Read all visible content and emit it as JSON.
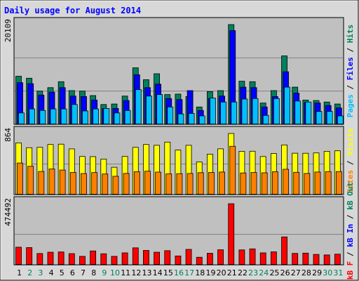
{
  "title": "Daily usage for August 2014",
  "colors": {
    "frame": "#d8d8d8",
    "panel": "#c0c0c0",
    "grid": "#808080",
    "hits": "#00805c",
    "files": "#0000ff",
    "pages": "#00c0ff",
    "visits": "#ffff00",
    "sites": "#ff8000",
    "kbin": "#0000ff",
    "kbout": "#00805c",
    "kbf": "#ff0000",
    "title": "#0000ff",
    "weekday": "#000000",
    "weekend": "#00805c"
  },
  "right_labels": {
    "top": [
      "Pages",
      " / ",
      "Files",
      " / ",
      "Hits"
    ],
    "middle": [
      "Sites",
      " / ",
      "Visits"
    ],
    "bottom": [
      "kB F",
      " / ",
      "kB In",
      " / ",
      "kB Out"
    ]
  },
  "chart_data": [
    {
      "type": "bar",
      "name": "hits-files-pages",
      "ymax_label": "20109",
      "ylim": [
        0,
        20109
      ],
      "x": [
        1,
        2,
        3,
        4,
        5,
        6,
        7,
        8,
        9,
        10,
        11,
        12,
        13,
        14,
        15,
        16,
        17,
        18,
        19,
        20,
        21,
        22,
        23,
        24,
        25,
        26,
        27,
        28,
        29,
        30,
        31
      ],
      "series": [
        {
          "name": "Hits",
          "values": [
            9700,
            9300,
            6700,
            7400,
            8600,
            6800,
            6700,
            5800,
            4000,
            4100,
            5700,
            11400,
            9000,
            10200,
            6000,
            6100,
            5600,
            3500,
            6600,
            6800,
            20109,
            8700,
            8600,
            4300,
            6800,
            13800,
            7500,
            4900,
            4800,
            4500,
            4100
          ]
        },
        {
          "name": "Files",
          "values": [
            8400,
            8200,
            5900,
            6500,
            7400,
            5700,
            5600,
            4900,
            3200,
            3200,
            4800,
            10000,
            7400,
            8100,
            5200,
            5000,
            6800,
            2800,
            5200,
            5700,
            18900,
            7500,
            7400,
            3500,
            5600,
            10600,
            6300,
            4400,
            4300,
            3800,
            3300
          ]
        },
        {
          "name": "Pages",
          "values": [
            2300,
            3100,
            2800,
            3100,
            3100,
            4000,
            2700,
            3100,
            3200,
            2300,
            2800,
            7000,
            5700,
            6000,
            3500,
            2100,
            2200,
            1700,
            5300,
            4500,
            4500,
            5100,
            5200,
            1800,
            5200,
            7500,
            4700,
            4500,
            2600,
            2600,
            1700
          ]
        }
      ]
    },
    {
      "type": "bar",
      "name": "visits-sites",
      "ymax_label": "864",
      "ylim": [
        0,
        864
      ],
      "x": [
        1,
        2,
        3,
        4,
        5,
        6,
        7,
        8,
        9,
        10,
        11,
        12,
        13,
        14,
        15,
        16,
        17,
        18,
        19,
        20,
        21,
        22,
        23,
        24,
        25,
        26,
        27,
        28,
        29,
        30,
        31
      ],
      "series": [
        {
          "name": "Visits",
          "values": [
            731,
            663,
            668,
            708,
            713,
            646,
            539,
            537,
            502,
            386,
            539,
            668,
            708,
            697,
            742,
            630,
            697,
            462,
            572,
            647,
            864,
            612,
            613,
            538,
            581,
            702,
            585,
            584,
            589,
            612,
            619
          ]
        },
        {
          "name": "Sites",
          "values": [
            446,
            400,
            327,
            362,
            347,
            312,
            298,
            311,
            291,
            259,
            299,
            323,
            331,
            318,
            293,
            296,
            299,
            310,
            313,
            319,
            683,
            306,
            312,
            308,
            324,
            358,
            315,
            299,
            319,
            325,
            326
          ]
        }
      ]
    },
    {
      "type": "bar",
      "name": "kbf-kbin-kbout",
      "ymax_label": "474492",
      "ylim": [
        0,
        474492
      ],
      "x": [
        1,
        2,
        3,
        4,
        5,
        6,
        7,
        8,
        9,
        10,
        11,
        12,
        13,
        14,
        15,
        16,
        17,
        18,
        19,
        20,
        21,
        22,
        23,
        24,
        25,
        26,
        27,
        28,
        29,
        30,
        31
      ],
      "series": [
        {
          "name": "kB F",
          "values": [
            137000,
            134000,
            88000,
            98000,
            100000,
            87000,
            66000,
            108000,
            86000,
            66000,
            93000,
            132000,
            112000,
            98000,
            110000,
            69000,
            120000,
            59000,
            90000,
            117000,
            474492,
            116000,
            124000,
            93000,
            101000,
            217000,
            89000,
            91000,
            81000,
            77000,
            83000
          ]
        },
        {
          "name": "kB In",
          "values": [
            0,
            0,
            0,
            0,
            0,
            0,
            0,
            0,
            0,
            0,
            0,
            0,
            0,
            0,
            0,
            0,
            0,
            0,
            0,
            0,
            0,
            0,
            0,
            0,
            0,
            0,
            0,
            0,
            0,
            0,
            0
          ]
        },
        {
          "name": "kB Out",
          "values": [
            0,
            0,
            0,
            0,
            0,
            0,
            0,
            0,
            0,
            0,
            0,
            0,
            0,
            0,
            0,
            0,
            0,
            0,
            0,
            0,
            0,
            0,
            0,
            0,
            0,
            0,
            0,
            0,
            0,
            0,
            0
          ]
        }
      ]
    }
  ],
  "x_axis": {
    "labels": [
      "1",
      "2",
      "3",
      "4",
      "5",
      "6",
      "7",
      "8",
      "9",
      "10",
      "11",
      "12",
      "13",
      "14",
      "15",
      "16",
      "17",
      "18",
      "19",
      "20",
      "21",
      "22",
      "23",
      "24",
      "25",
      "26",
      "27",
      "28",
      "29",
      "30",
      "31"
    ],
    "weekend": [
      2,
      3,
      9,
      10,
      16,
      17,
      23,
      24,
      30,
      31
    ]
  }
}
